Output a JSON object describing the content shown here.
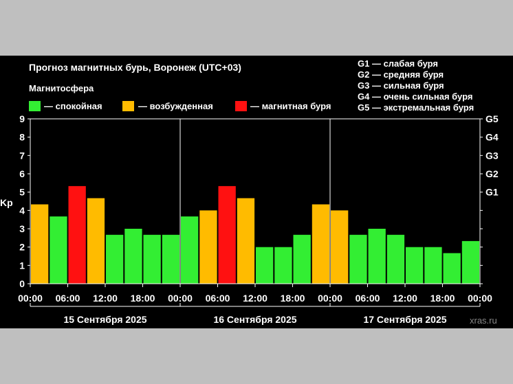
{
  "title": "Прогноз магнитных бурь, Воронеж (UTC+03)",
  "legend": {
    "heading": "Магнитосфера",
    "items": [
      {
        "label": "— спокойная",
        "color": "#33ee33"
      },
      {
        "label": "— возбужденная",
        "color": "#ffbb00"
      },
      {
        "label": "— магнитная буря",
        "color": "#ff1111"
      }
    ]
  },
  "storm_scale": [
    "G1 — слабая буря",
    "G2 — средняя буря",
    "G3 — сильная буря",
    "G4 — очень сильная буря",
    "G5 — экстремальная буря"
  ],
  "watermark": "xras.ru",
  "chart_data": {
    "type": "bar",
    "ylabel": "Kp",
    "ylim": [
      0,
      9
    ],
    "y_ticks": [
      "0",
      "1",
      "2",
      "3",
      "4",
      "5",
      "6",
      "7",
      "8",
      "9"
    ],
    "right_axis_ticks": [
      {
        "label": "G1",
        "kp": 5
      },
      {
        "label": "G2",
        "kp": 6
      },
      {
        "label": "G3",
        "kp": 7
      },
      {
        "label": "G4",
        "kp": 8
      },
      {
        "label": "G5",
        "kp": 9
      }
    ],
    "x_tick_labels": [
      "00:00",
      "06:00",
      "12:00",
      "18:00",
      "00:00",
      "06:00",
      "12:00",
      "18:00",
      "00:00",
      "06:00",
      "12:00",
      "18:00",
      "00:00"
    ],
    "days": [
      {
        "label": "15 Сентября 2025",
        "values": [
          4.33,
          3.67,
          5.33,
          4.67,
          2.67,
          3.0,
          2.67,
          2.67
        ]
      },
      {
        "label": "16 Сентября 2025",
        "values": [
          3.67,
          4.0,
          5.33,
          4.67,
          2.0,
          2.0,
          2.67,
          4.33
        ]
      },
      {
        "label": "17 Сентября 2025",
        "values": [
          4.0,
          2.67,
          3.0,
          2.67,
          2.0,
          2.0,
          1.67,
          2.33
        ]
      }
    ],
    "thresholds": {
      "excited": 4,
      "storm": 5
    },
    "grid": false
  }
}
